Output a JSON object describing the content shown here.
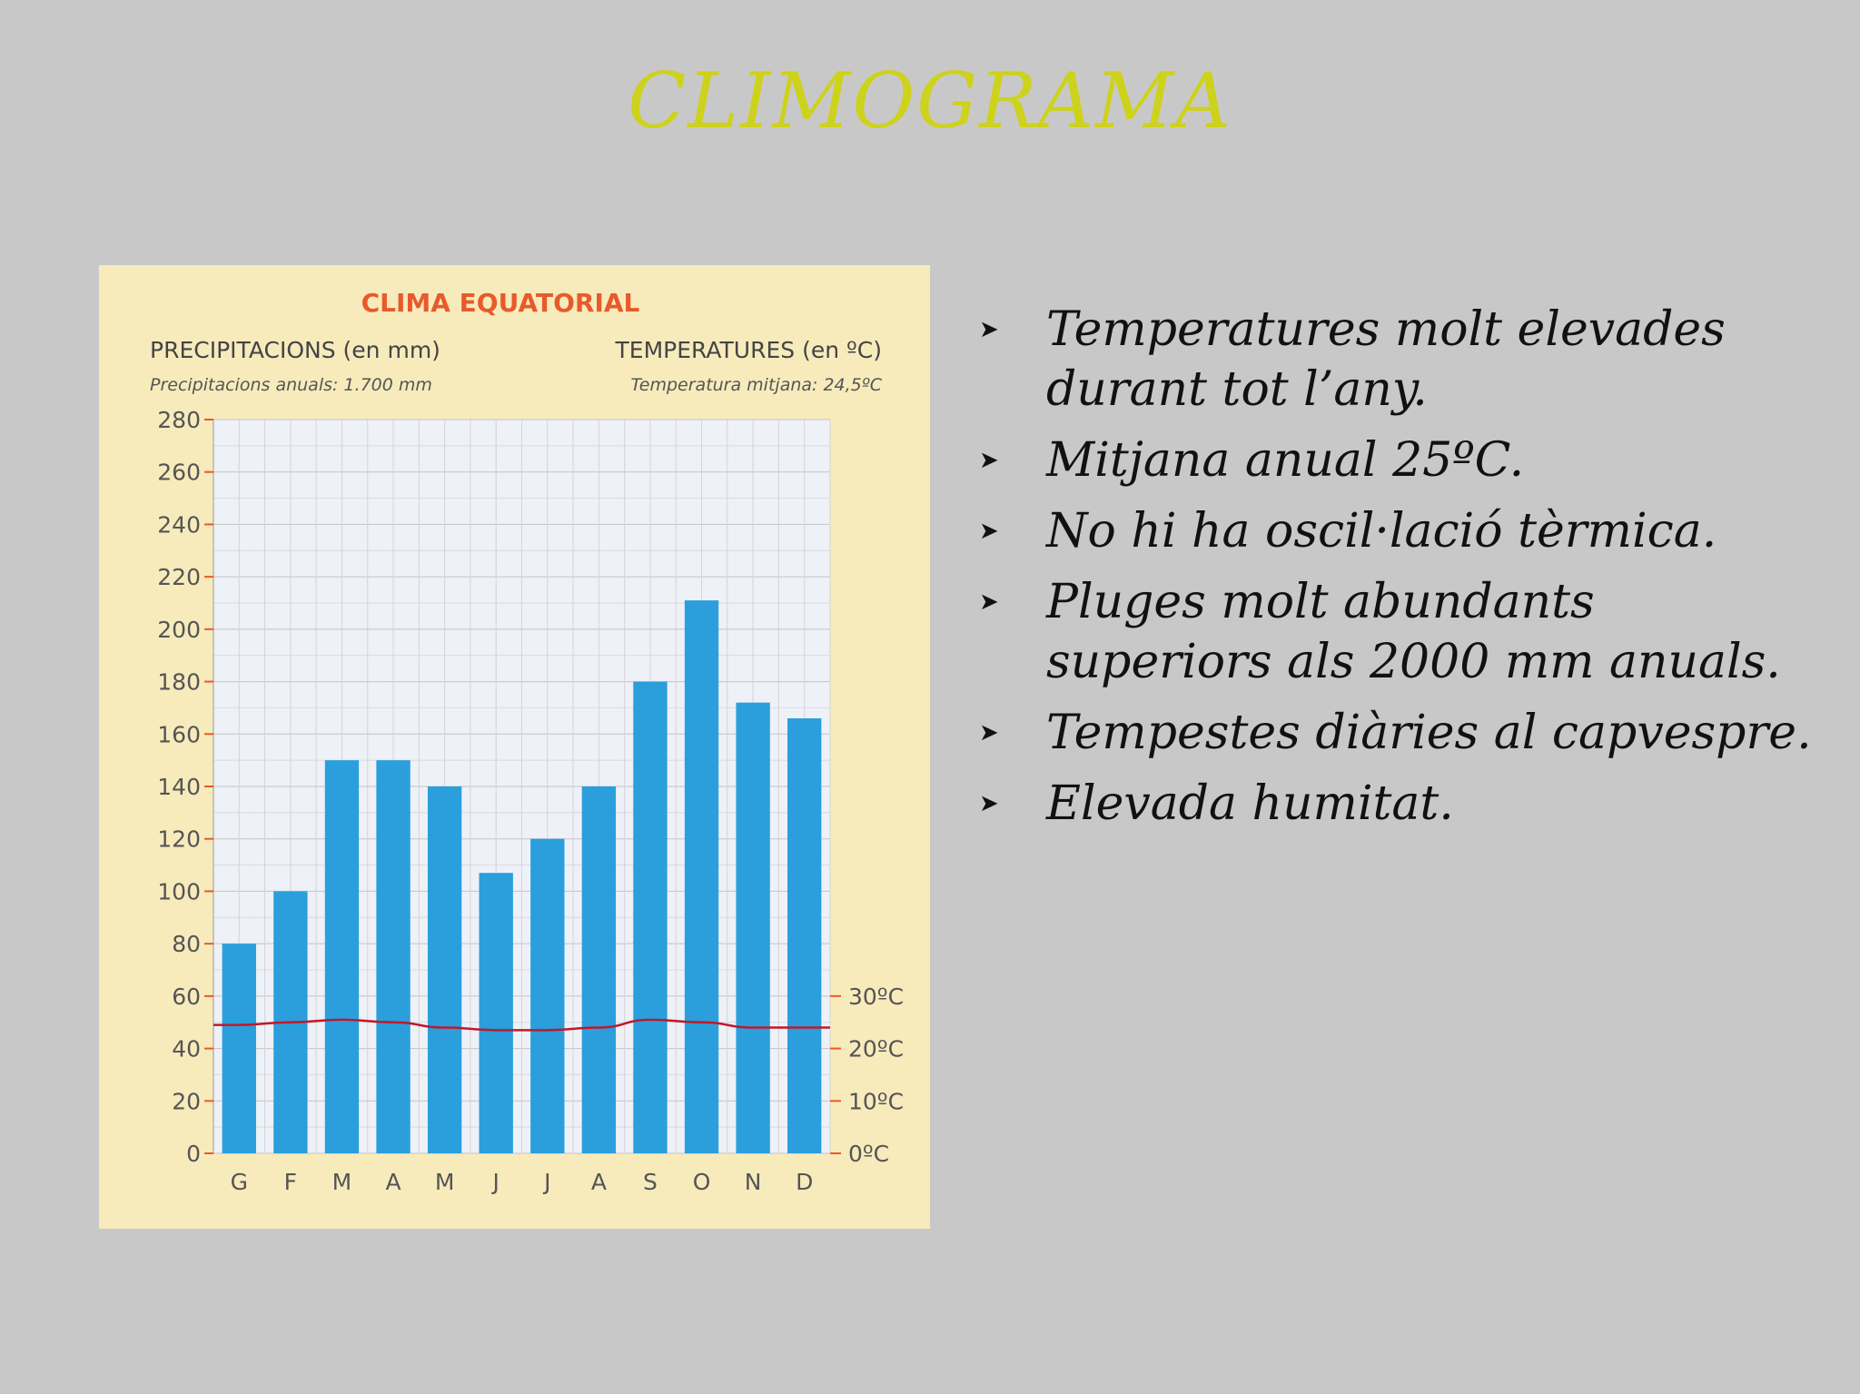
{
  "slide": {
    "title": "CLIMOGRAMA",
    "title_color": "#cdd21c",
    "background": "#c9c8c9"
  },
  "bullets": {
    "marker": "➤",
    "items": [
      "Temperatures molt elevades durant tot l’any.",
      "Mitjana anual 25ºC.",
      "No hi ha oscil·lació tèrmica.",
      "Pluges molt abundants superiors als 2000  mm anuals.",
      "Tempestes diàries al capvespre.",
      "Elevada humitat."
    ]
  },
  "chart_data": {
    "type": "bar",
    "title": "CLIMA EQUATORIAL",
    "left_heading": "PRECIPITACIONS (en mm)",
    "left_subheading": "Precipitacions anuals: 1.700 mm",
    "right_heading": "TEMPERATURES (en ºC)",
    "right_subheading": "Temperatura mitjana: 24,5ºC",
    "categories": [
      "G",
      "F",
      "M",
      "A",
      "M",
      "J",
      "J",
      "A",
      "S",
      "O",
      "N",
      "D"
    ],
    "series": [
      {
        "type": "bar",
        "values": [
          80,
          100,
          150,
          150,
          140,
          107,
          120,
          140,
          180,
          211,
          172,
          166
        ],
        "color": "#2a9fdc"
      },
      {
        "type": "line",
        "values": [
          24.5,
          25,
          25.5,
          25,
          24,
          23.5,
          23.5,
          24,
          25.5,
          25,
          24,
          24
        ],
        "color": "#c0182a"
      }
    ],
    "ylim": [
      0,
      280
    ],
    "yticks": [
      "0",
      "20",
      "40",
      "60",
      "80",
      "100",
      "120",
      "140",
      "160",
      "180",
      "200",
      "220",
      "240",
      "260",
      "280"
    ],
    "y2lim": [
      0,
      30
    ],
    "y2ticks": [
      "0ºC",
      "10ºC",
      "20ºC",
      "30ºC"
    ],
    "grid": true,
    "panel_color": "#f7ebbc"
  }
}
